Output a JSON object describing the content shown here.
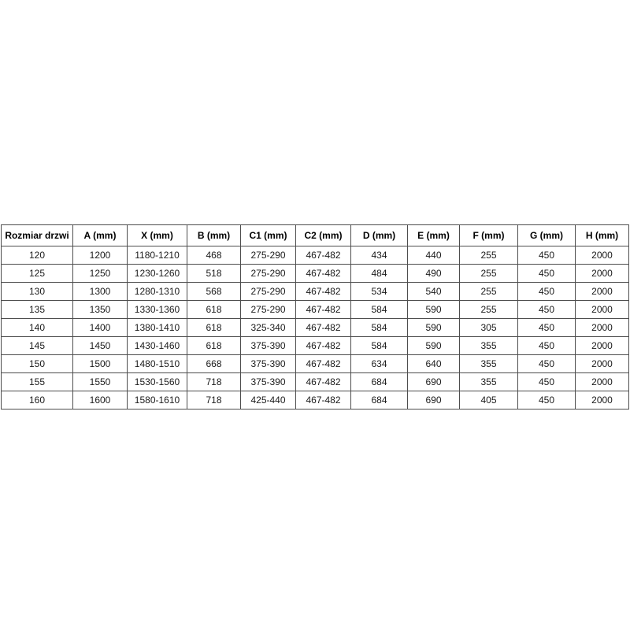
{
  "page": {
    "background_color": "#ffffff",
    "text_color": "#1a1a1a",
    "border_color": "#4d4d4d"
  },
  "table": {
    "columns": [
      "Rozmiar drzwi",
      "A (mm)",
      "X (mm)",
      "B (mm)",
      "C1 (mm)",
      "C2 (mm)",
      "D (mm)",
      "E (mm)",
      "F (mm)",
      "G (mm)",
      "H (mm)"
    ],
    "rows": [
      [
        "120",
        "1200",
        "1180-1210",
        "468",
        "275-290",
        "467-482",
        "434",
        "440",
        "255",
        "450",
        "2000"
      ],
      [
        "125",
        "1250",
        "1230-1260",
        "518",
        "275-290",
        "467-482",
        "484",
        "490",
        "255",
        "450",
        "2000"
      ],
      [
        "130",
        "1300",
        "1280-1310",
        "568",
        "275-290",
        "467-482",
        "534",
        "540",
        "255",
        "450",
        "2000"
      ],
      [
        "135",
        "1350",
        "1330-1360",
        "618",
        "275-290",
        "467-482",
        "584",
        "590",
        "255",
        "450",
        "2000"
      ],
      [
        "140",
        "1400",
        "1380-1410",
        "618",
        "325-340",
        "467-482",
        "584",
        "590",
        "305",
        "450",
        "2000"
      ],
      [
        "145",
        "1450",
        "1430-1460",
        "618",
        "375-390",
        "467-482",
        "584",
        "590",
        "355",
        "450",
        "2000"
      ],
      [
        "150",
        "1500",
        "1480-1510",
        "668",
        "375-390",
        "467-482",
        "634",
        "640",
        "355",
        "450",
        "2000"
      ],
      [
        "155",
        "1550",
        "1530-1560",
        "718",
        "375-390",
        "467-482",
        "684",
        "690",
        "355",
        "450",
        "2000"
      ],
      [
        "160",
        "1600",
        "1580-1610",
        "718",
        "425-440",
        "467-482",
        "684",
        "690",
        "405",
        "450",
        "2000"
      ]
    ]
  }
}
